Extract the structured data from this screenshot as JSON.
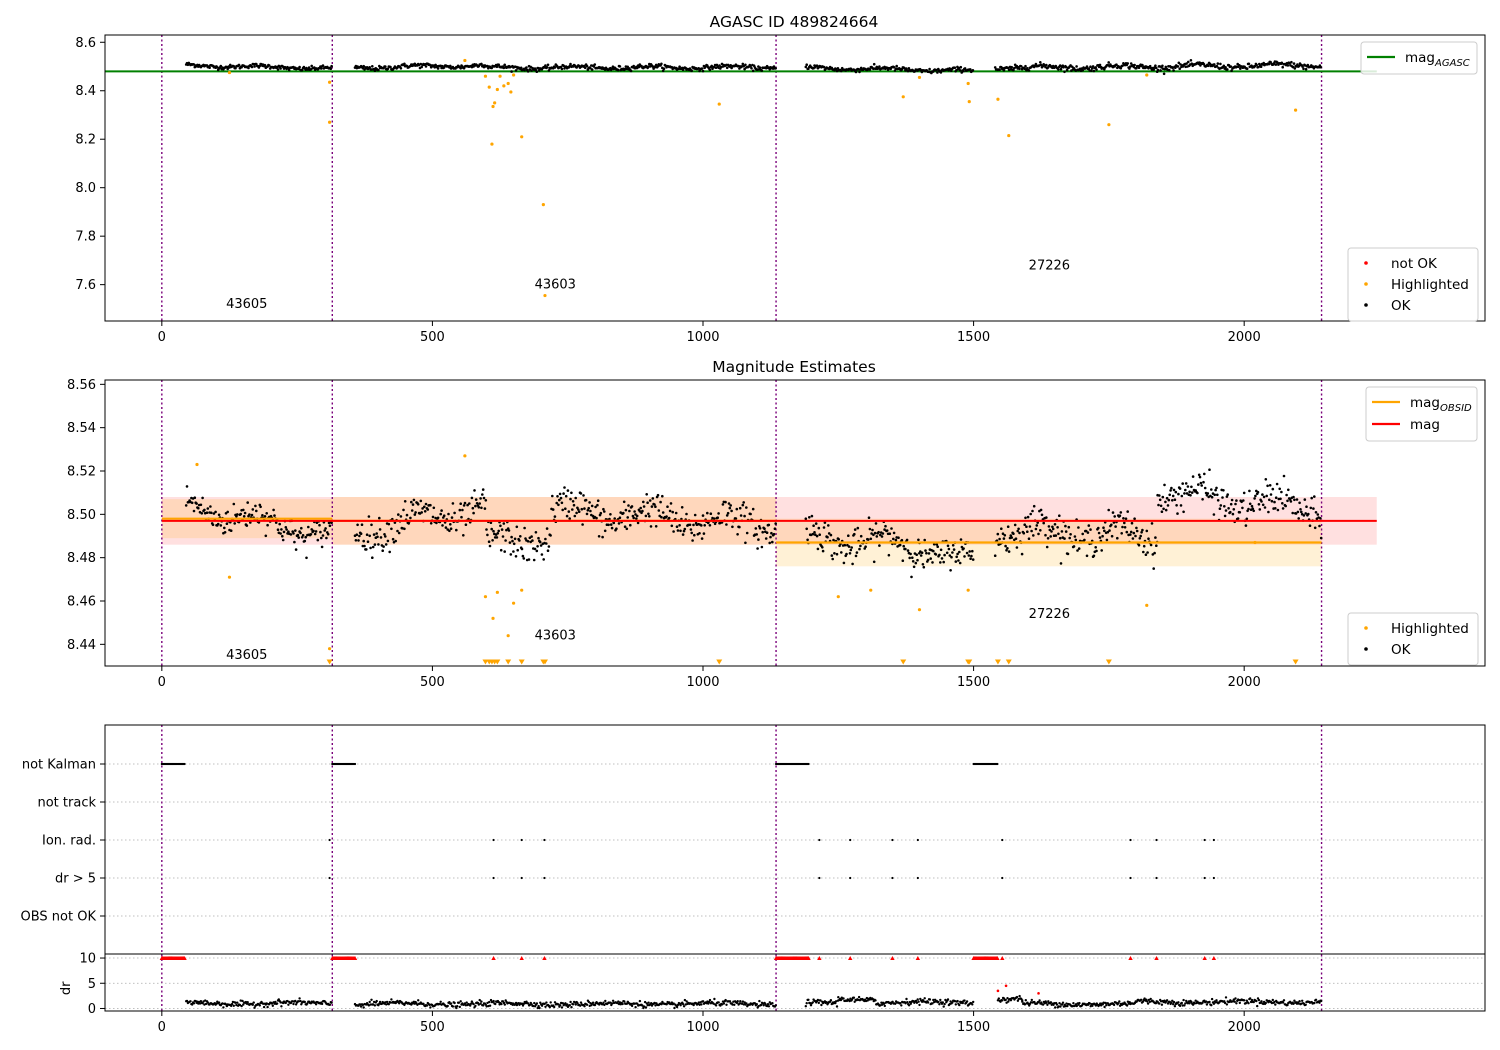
{
  "chart_data": [
    {
      "type": "scatter",
      "title": "AGASC ID 489824664",
      "xlim": [
        -105,
        2445
      ],
      "ylim": [
        7.45,
        8.63
      ],
      "xticks": [
        0,
        500,
        1000,
        1500,
        2000
      ],
      "yticks": [
        7.6,
        7.8,
        8.0,
        8.2,
        8.4,
        8.6
      ],
      "ytick_labels": [
        "7.6",
        "7.8",
        "8.0",
        "8.2",
        "8.4",
        "8.6"
      ],
      "obs_boundaries": [
        0,
        315,
        1135,
        2143
      ],
      "obs_labels": [
        {
          "text": "43605",
          "x": 157,
          "y": 7.52
        },
        {
          "text": "43603",
          "x": 727,
          "y": 7.6
        },
        {
          "text": "27226",
          "x": 1640,
          "y": 7.68
        }
      ],
      "mag_agasc": 8.48,
      "legend_lines": [
        {
          "label": "mag",
          "sub": "AGASC",
          "color": "#008000"
        }
      ],
      "legend_points": [
        {
          "label": "not OK",
          "color": "#ff0000"
        },
        {
          "label": "Highlighted",
          "color": "#ffa500"
        },
        {
          "label": "OK",
          "color": "#000000"
        }
      ],
      "ok_segments": [
        {
          "x0": 45,
          "x1": 315,
          "y0": 8.505,
          "y1": 8.492,
          "noise": 0.008
        },
        {
          "x0": 357,
          "x1": 600,
          "y0": 8.495,
          "y1": 8.505,
          "noise": 0.009
        },
        {
          "x0": 600,
          "x1": 1135,
          "y0": 8.495,
          "y1": 8.497,
          "noise": 0.009
        },
        {
          "x0": 1190,
          "x1": 1500,
          "y0": 8.495,
          "y1": 8.482,
          "noise": 0.009
        },
        {
          "x0": 1540,
          "x1": 2143,
          "y0": 8.495,
          "y1": 8.505,
          "noise": 0.011
        }
      ],
      "highlighted": [
        [
          125,
          8.475
        ],
        [
          310,
          8.435
        ],
        [
          310,
          8.27
        ],
        [
          560,
          8.525
        ],
        [
          598,
          8.46
        ],
        [
          605,
          8.415
        ],
        [
          610,
          8.18
        ],
        [
          612,
          8.335
        ],
        [
          615,
          8.35
        ],
        [
          620,
          8.405
        ],
        [
          625,
          8.46
        ],
        [
          632,
          8.42
        ],
        [
          640,
          8.43
        ],
        [
          645,
          8.395
        ],
        [
          650,
          8.465
        ],
        [
          665,
          8.21
        ],
        [
          705,
          7.93
        ],
        [
          708,
          7.555
        ],
        [
          1030,
          8.345
        ],
        [
          1370,
          8.375
        ],
        [
          1400,
          8.455
        ],
        [
          1490,
          8.43
        ],
        [
          1492,
          8.355
        ],
        [
          1545,
          8.365
        ],
        [
          1565,
          8.215
        ],
        [
          1750,
          8.26
        ],
        [
          1820,
          8.465
        ],
        [
          2095,
          8.32
        ]
      ]
    },
    {
      "type": "scatter",
      "title": "Magnitude Estimates",
      "xlim": [
        -105,
        2445
      ],
      "ylim": [
        8.43,
        8.562
      ],
      "xticks": [
        0,
        500,
        1000,
        1500,
        2000
      ],
      "yticks": [
        8.44,
        8.46,
        8.48,
        8.5,
        8.52,
        8.54,
        8.56
      ],
      "ytick_labels": [
        "8.44",
        "8.46",
        "8.48",
        "8.50",
        "8.52",
        "8.54",
        "8.56"
      ],
      "obs_boundaries": [
        0,
        315,
        1135,
        2143
      ],
      "obs_labels": [
        {
          "text": "43605",
          "x": 157,
          "y": 8.435
        },
        {
          "text": "43603",
          "x": 727,
          "y": 8.444
        },
        {
          "text": "27226",
          "x": 1640,
          "y": 8.454
        }
      ],
      "mag": {
        "value": 8.497,
        "band": [
          8.486,
          8.508
        ],
        "x0": 0,
        "x1": 2245,
        "color": "#ff0000"
      },
      "mag_obsid": [
        {
          "x0": 0,
          "x1": 315,
          "value": 8.498,
          "band": [
            8.489,
            8.507
          ]
        },
        {
          "x0": 315,
          "x1": 1135,
          "value": 8.497,
          "band": [
            8.486,
            8.508
          ]
        },
        {
          "x0": 1135,
          "x1": 2143,
          "value": 8.487,
          "band": [
            8.476,
            8.498
          ]
        }
      ],
      "legend_lines": [
        {
          "label": "mag",
          "sub": "OBSID",
          "color": "#ffa500"
        },
        {
          "label": "mag",
          "sub": "",
          "color": "#ff0000"
        }
      ],
      "legend_points": [
        {
          "label": "Highlighted",
          "color": "#ffa500"
        },
        {
          "label": "OK",
          "color": "#000000"
        }
      ],
      "ok_segments": [
        {
          "x0": 45,
          "x1": 315,
          "y0": 8.504,
          "y1": 8.49,
          "noise": 0.006
        },
        {
          "x0": 357,
          "x1": 600,
          "y0": 8.492,
          "y1": 8.503,
          "noise": 0.007
        },
        {
          "x0": 600,
          "x1": 720,
          "y0": 8.486,
          "y1": 8.49,
          "noise": 0.007
        },
        {
          "x0": 720,
          "x1": 1135,
          "y0": 8.502,
          "y1": 8.495,
          "noise": 0.007
        },
        {
          "x0": 1190,
          "x1": 1400,
          "y0": 8.49,
          "y1": 8.485,
          "noise": 0.007
        },
        {
          "x0": 1400,
          "x1": 1500,
          "y0": 8.485,
          "y1": 8.478,
          "noise": 0.006
        },
        {
          "x0": 1540,
          "x1": 1840,
          "y0": 8.493,
          "y1": 8.49,
          "noise": 0.007
        },
        {
          "x0": 1840,
          "x1": 2143,
          "y0": 8.51,
          "y1": 8.502,
          "noise": 0.007
        }
      ],
      "highlighted": [
        [
          65,
          8.523
        ],
        [
          125,
          8.471
        ],
        [
          310,
          8.438
        ],
        [
          560,
          8.527
        ],
        [
          598,
          8.462
        ],
        [
          612,
          8.452
        ],
        [
          620,
          8.464
        ],
        [
          640,
          8.444
        ],
        [
          650,
          8.459
        ],
        [
          665,
          8.465
        ],
        [
          1250,
          8.462
        ],
        [
          1310,
          8.465
        ],
        [
          1400,
          8.456
        ],
        [
          1490,
          8.465
        ],
        [
          1820,
          8.458
        ],
        [
          2020,
          8.487
        ]
      ],
      "triangles": [
        310,
        598,
        605,
        610,
        615,
        620,
        640,
        665,
        705,
        708,
        1030,
        1370,
        1490,
        1492,
        1545,
        1565,
        1750,
        2095
      ]
    },
    {
      "type": "scatter",
      "xlim": [
        -105,
        2445
      ],
      "xticks": [
        0,
        500,
        1000,
        1500,
        2000
      ],
      "flag_rows": [
        "not Kalman",
        "not track",
        "Ion. rad.",
        "dr > 5",
        "OBS not OK"
      ],
      "obs_boundaries": [
        0,
        315,
        1135,
        2143
      ],
      "flags": {
        "not Kalman": [
          [
            0,
            42
          ],
          [
            315,
            358
          ],
          [
            1135,
            1195
          ],
          [
            1500,
            1545
          ]
        ],
        "Ion. rad.": [
          310,
          613,
          665,
          707,
          1215,
          1272,
          1350,
          1397,
          1553,
          1790,
          1838,
          1927,
          1944
        ],
        "dr > 5": [
          310,
          613,
          665,
          707,
          1215,
          1272,
          1350,
          1397,
          1553,
          1790,
          1838,
          1927,
          1944
        ]
      },
      "dr": {
        "ylabel": "dr",
        "ylim": [
          -0.5,
          10.8
        ],
        "yticks": [
          0,
          5,
          10
        ],
        "ytick_labels": [
          "0",
          "5",
          "10"
        ],
        "capped_ranges": [
          [
            0,
            42
          ],
          [
            315,
            358
          ],
          [
            1135,
            1195
          ],
          [
            1500,
            1545
          ]
        ],
        "capped_points": [
          613,
          665,
          707,
          1215,
          1272,
          1350,
          1397,
          1553,
          1790,
          1838,
          1927,
          1944
        ],
        "segments": [
          {
            "x0": 45,
            "x1": 315,
            "y": 1.0
          },
          {
            "x0": 357,
            "x1": 1135,
            "y": 0.9
          },
          {
            "x0": 1190,
            "x1": 1250,
            "y": 1.0
          },
          {
            "x0": 1250,
            "x1": 1320,
            "y": 1.8
          },
          {
            "x0": 1320,
            "x1": 1500,
            "y": 1.2
          },
          {
            "x0": 1545,
            "x1": 1590,
            "y": 1.8
          },
          {
            "x0": 1590,
            "x1": 1800,
            "y": 0.9
          },
          {
            "x0": 1800,
            "x1": 2143,
            "y": 1.3
          }
        ],
        "red_points": [
          [
            1545,
            3.5
          ],
          [
            1560,
            4.5
          ],
          [
            1620,
            3.0
          ]
        ]
      }
    }
  ]
}
